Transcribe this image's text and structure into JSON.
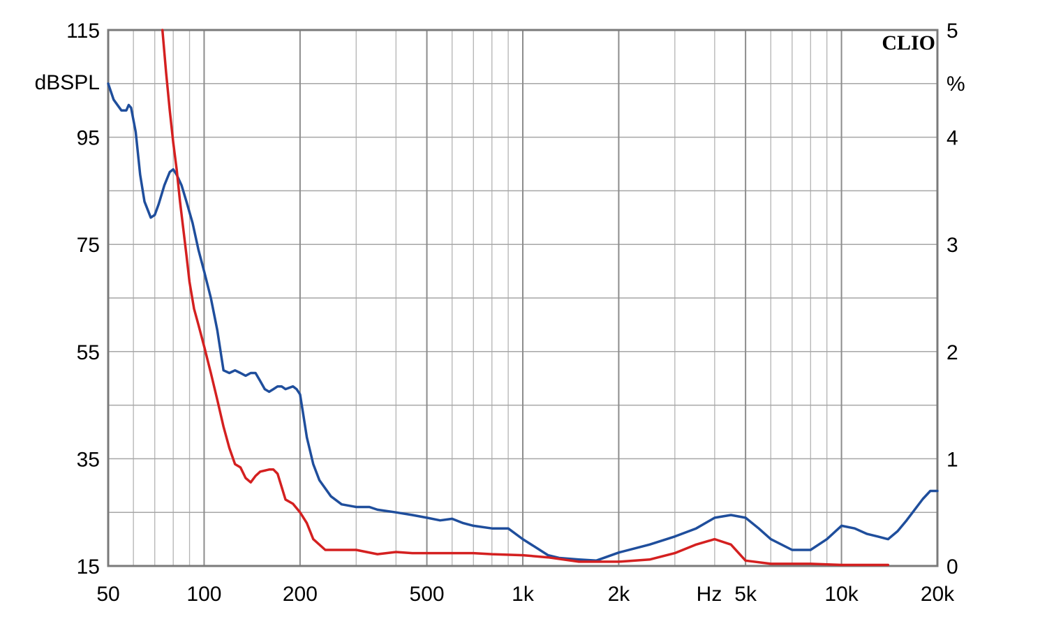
{
  "chart_data": {
    "type": "line",
    "title": "",
    "brand": "CLIO",
    "x_scale": "log",
    "xlim": [
      50,
      20000
    ],
    "x_ticks": [
      {
        "value": 50,
        "label": "50"
      },
      {
        "value": 100,
        "label": "100"
      },
      {
        "value": 200,
        "label": "200"
      },
      {
        "value": 500,
        "label": "500"
      },
      {
        "value": 1000,
        "label": "1k"
      },
      {
        "value": 2000,
        "label": "2k"
      },
      {
        "value": 5000,
        "label": "5k"
      },
      {
        "value": 10000,
        "label": "10k"
      },
      {
        "value": 20000,
        "label": "20k"
      }
    ],
    "x_unit": "Hz",
    "ylim_left": [
      15,
      115
    ],
    "y_ticks_left": [
      "15",
      "35",
      "55",
      "75",
      "95",
      "115"
    ],
    "ylabel_left": "dBSPL",
    "ylim_right": [
      0,
      5
    ],
    "y_ticks_right": [
      "0",
      "1",
      "2",
      "3",
      "4",
      "5"
    ],
    "ylabel_right": "%",
    "grid": true,
    "series": [
      {
        "axis": "left",
        "color": "#1f4e9c",
        "x": [
          50,
          52,
          55,
          57,
          58,
          59,
          61,
          63,
          65,
          68,
          70,
          72,
          75,
          78,
          80,
          82,
          85,
          88,
          92,
          96,
          100,
          105,
          110,
          115,
          120,
          125,
          130,
          135,
          140,
          145,
          150,
          155,
          160,
          165,
          170,
          175,
          180,
          190,
          195,
          200,
          205,
          210,
          220,
          230,
          250,
          270,
          300,
          330,
          350,
          400,
          450,
          500,
          550,
          600,
          650,
          700,
          800,
          900,
          1000,
          1200,
          1300,
          1500,
          1700,
          2000,
          2500,
          3000,
          3500,
          4000,
          4500,
          5000,
          5500,
          6000,
          7000,
          8000,
          9000,
          10000,
          11000,
          12000,
          13000,
          14000,
          15000,
          16000,
          18000,
          19000,
          20000
        ],
        "y": [
          105,
          102,
          100,
          100,
          101,
          100.5,
          96,
          88,
          83,
          80,
          80.5,
          82.5,
          86,
          88.5,
          89,
          88,
          86,
          83,
          79,
          74,
          70,
          65,
          59,
          51.5,
          51,
          51.5,
          51,
          50.5,
          51,
          51,
          49.5,
          48,
          47.5,
          48,
          48.5,
          48.5,
          48,
          48.5,
          48,
          47,
          43,
          39,
          34,
          31,
          28,
          26.5,
          26,
          26,
          25.5,
          25,
          24.5,
          24,
          23.5,
          23.8,
          23,
          22.5,
          22,
          22,
          20,
          17,
          16.5,
          16.2,
          16,
          17.5,
          19,
          20.5,
          22,
          24,
          24.5,
          24,
          22,
          20,
          18,
          18,
          20,
          22.5,
          22,
          21,
          20.5,
          20,
          21.5,
          23.5,
          27.5,
          29,
          29
        ]
      },
      {
        "axis": "right",
        "color": "#d42020",
        "x": [
          74,
          76,
          78,
          80,
          82,
          84,
          86,
          88,
          90,
          93,
          96,
          100,
          105,
          110,
          115,
          120,
          125,
          130,
          135,
          140,
          145,
          150,
          160,
          165,
          170,
          180,
          190,
          200,
          210,
          220,
          240,
          260,
          300,
          350,
          400,
          450,
          500,
          600,
          700,
          800,
          1000,
          1200,
          1500,
          2000,
          2500,
          3000,
          3500,
          4000,
          4500,
          5000,
          6000,
          8000,
          10000,
          14000
        ],
        "y": [
          5.0,
          4.6,
          4.25,
          3.95,
          3.7,
          3.4,
          3.15,
          2.9,
          2.65,
          2.4,
          2.25,
          2.05,
          1.8,
          1.55,
          1.3,
          1.1,
          0.95,
          0.92,
          0.82,
          0.78,
          0.84,
          0.88,
          0.9,
          0.9,
          0.86,
          0.62,
          0.58,
          0.5,
          0.4,
          0.25,
          0.15,
          0.15,
          0.15,
          0.11,
          0.13,
          0.12,
          0.12,
          0.12,
          0.12,
          0.11,
          0.1,
          0.08,
          0.04,
          0.04,
          0.06,
          0.12,
          0.2,
          0.25,
          0.2,
          0.05,
          0.02,
          0.02,
          0.01,
          0.01
        ]
      }
    ]
  }
}
